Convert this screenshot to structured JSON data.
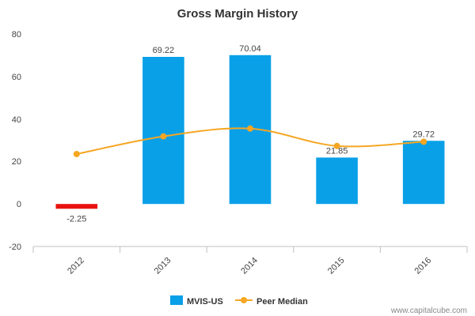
{
  "chart_data": {
    "type": "bar",
    "title": "Gross Margin History",
    "categories": [
      "2012",
      "2013",
      "2014",
      "2015",
      "2016"
    ],
    "series": [
      {
        "name": "MVIS-US",
        "type": "bar",
        "values": [
          -2.25,
          69.22,
          70.04,
          21.85,
          29.72
        ],
        "data_labels": [
          "-2.25",
          "69.22",
          "70.04",
          "21.85",
          "29.72"
        ],
        "color": "#0aa0e8",
        "negative_color": "#e8130f"
      },
      {
        "name": "Peer Median",
        "type": "line",
        "values": [
          23.5,
          31.8,
          35.5,
          27.3,
          29.3
        ],
        "color": "#f5a623"
      }
    ],
    "yticks": [
      "80",
      "60",
      "40",
      "20",
      "0",
      "-20"
    ],
    "ylim": [
      -20,
      80
    ],
    "grid": false,
    "legend": "bottom-center"
  },
  "credit": "www.capitalcube.com"
}
